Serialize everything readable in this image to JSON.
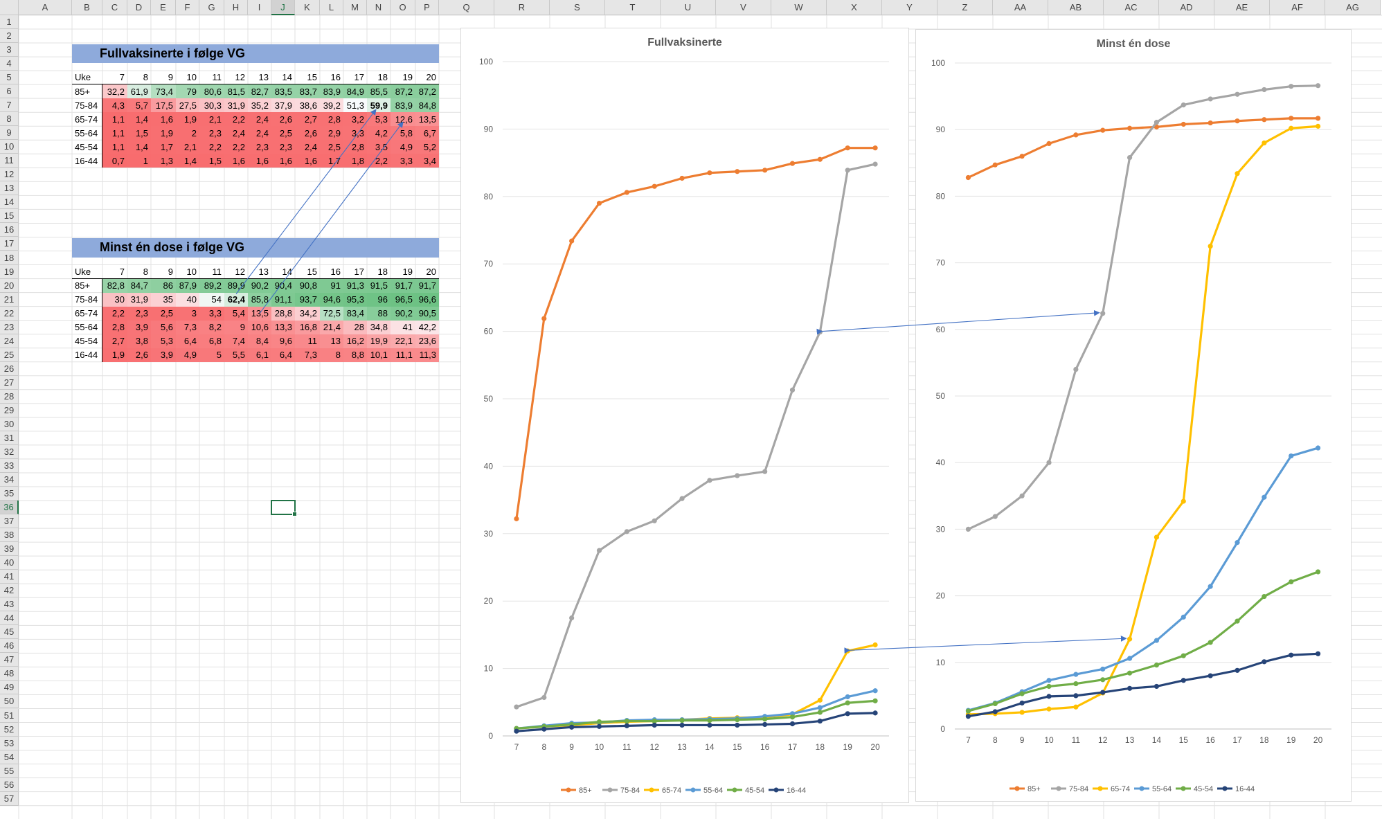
{
  "spreadsheet": {
    "columns": [
      "A",
      "B",
      "C",
      "D",
      "E",
      "F",
      "G",
      "H",
      "I",
      "J",
      "K",
      "L",
      "M",
      "N",
      "O",
      "P",
      "Q",
      "R",
      "S",
      "T",
      "U",
      "V",
      "W",
      "X",
      "Y",
      "Z",
      "AA",
      "AB",
      "AC",
      "AD",
      "AE",
      "AF",
      "AG"
    ],
    "rows": [
      "1",
      "2",
      "3",
      "4",
      "5",
      "6",
      "7",
      "8",
      "9",
      "10",
      "11",
      "12",
      "13",
      "14",
      "15",
      "16",
      "17",
      "18",
      "19",
      "20",
      "21",
      "22",
      "23",
      "24",
      "25",
      "26",
      "27",
      "28",
      "29",
      "30",
      "31",
      "32",
      "33",
      "34",
      "35",
      "36",
      "37",
      "38",
      "39",
      "40",
      "41",
      "42",
      "43",
      "44",
      "45",
      "46",
      "47",
      "48",
      "49",
      "50",
      "51",
      "52",
      "53",
      "54",
      "55",
      "56",
      "57"
    ],
    "selected_column": "J",
    "selected_row": "36"
  },
  "tables": [
    {
      "title": "Fullvaksinerte i følge VG",
      "header_label": "Uke",
      "weeks": [
        "7",
        "8",
        "9",
        "10",
        "11",
        "12",
        "13",
        "14",
        "15",
        "16",
        "17",
        "18",
        "19",
        "20"
      ],
      "rows": [
        {
          "label": "85+",
          "values": [
            "32,2",
            "61,9",
            "73,4",
            "79",
            "80,6",
            "81,5",
            "82,7",
            "83,5",
            "83,7",
            "83,9",
            "84,9",
            "85,5",
            "87,2",
            "87,2"
          ]
        },
        {
          "label": "75-84",
          "values": [
            "4,3",
            "5,7",
            "17,5",
            "27,5",
            "30,3",
            "31,9",
            "35,2",
            "37,9",
            "38,6",
            "39,2",
            "51,3",
            "59,9",
            "83,9",
            "84,8"
          ]
        },
        {
          "label": "65-74",
          "values": [
            "1,1",
            "1,4",
            "1,6",
            "1,9",
            "2,1",
            "2,2",
            "2,4",
            "2,6",
            "2,7",
            "2,8",
            "3,2",
            "5,3",
            "12,6",
            "13,5"
          ]
        },
        {
          "label": "55-64",
          "values": [
            "1,1",
            "1,5",
            "1,9",
            "2",
            "2,3",
            "2,4",
            "2,4",
            "2,5",
            "2,6",
            "2,9",
            "3,3",
            "4,2",
            "5,8",
            "6,7"
          ]
        },
        {
          "label": "45-54",
          "values": [
            "1,1",
            "1,4",
            "1,7",
            "2,1",
            "2,2",
            "2,2",
            "2,3",
            "2,3",
            "2,4",
            "2,5",
            "2,8",
            "3,5",
            "4,9",
            "5,2"
          ]
        },
        {
          "label": "16-44",
          "values": [
            "0,7",
            "1",
            "1,3",
            "1,4",
            "1,5",
            "1,6",
            "1,6",
            "1,6",
            "1,6",
            "1,7",
            "1,8",
            "2,2",
            "3,3",
            "3,4"
          ]
        }
      ]
    },
    {
      "title": "Minst én dose i følge VG",
      "header_label": "Uke",
      "weeks": [
        "7",
        "8",
        "9",
        "10",
        "11",
        "12",
        "13",
        "14",
        "15",
        "16",
        "17",
        "18",
        "19",
        "20"
      ],
      "rows": [
        {
          "label": "85+",
          "values": [
            "82,8",
            "84,7",
            "86",
            "87,9",
            "89,2",
            "89,9",
            "90,2",
            "90,4",
            "90,8",
            "91",
            "91,3",
            "91,5",
            "91,7",
            "91,7"
          ]
        },
        {
          "label": "75-84",
          "values": [
            "30",
            "31,9",
            "35",
            "40",
            "54",
            "62,4",
            "85,8",
            "91,1",
            "93,7",
            "94,6",
            "95,3",
            "96",
            "96,5",
            "96,6"
          ]
        },
        {
          "label": "65-74",
          "values": [
            "2,2",
            "2,3",
            "2,5",
            "3",
            "3,3",
            "5,4",
            "13,5",
            "28,8",
            "34,2",
            "72,5",
            "83,4",
            "88",
            "90,2",
            "90,5"
          ]
        },
        {
          "label": "55-64",
          "values": [
            "2,8",
            "3,9",
            "5,6",
            "7,3",
            "8,2",
            "9",
            "10,6",
            "13,3",
            "16,8",
            "21,4",
            "28",
            "34,8",
            "41",
            "42,2"
          ]
        },
        {
          "label": "45-54",
          "values": [
            "2,7",
            "3,8",
            "5,3",
            "6,4",
            "6,8",
            "7,4",
            "8,4",
            "9,6",
            "11",
            "13",
            "16,2",
            "19,9",
            "22,1",
            "23,6"
          ]
        },
        {
          "label": "16-44",
          "values": [
            "1,9",
            "2,6",
            "3,9",
            "4,9",
            "5",
            "5,5",
            "6,1",
            "6,4",
            "7,3",
            "8",
            "8,8",
            "10,1",
            "11,1",
            "11,3"
          ]
        }
      ]
    }
  ],
  "colors": {
    "series": [
      "#ED7D31",
      "#A5A5A5",
      "#FFC000",
      "#5B9BD5",
      "#70AD47",
      "#264478"
    ],
    "arrow": "#4472C4",
    "title_fill": "#8EAADB",
    "cell_green": "#63BE7B",
    "cell_red": "#F8696B"
  },
  "chart_data": [
    {
      "type": "line",
      "title": "Fullvaksinerte",
      "x": [
        "7",
        "8",
        "9",
        "10",
        "11",
        "12",
        "13",
        "14",
        "15",
        "16",
        "17",
        "18",
        "19",
        "20"
      ],
      "ylim": [
        0,
        100
      ],
      "yticks": [
        "0",
        "10",
        "20",
        "30",
        "40",
        "50",
        "60",
        "70",
        "80",
        "90",
        "100"
      ],
      "grid": true,
      "legend": "bottom",
      "series": [
        {
          "name": "85+",
          "values": [
            32.2,
            61.9,
            73.4,
            79,
            80.6,
            81.5,
            82.7,
            83.5,
            83.7,
            83.9,
            84.9,
            85.5,
            87.2,
            87.2
          ]
        },
        {
          "name": "75-84",
          "values": [
            4.3,
            5.7,
            17.5,
            27.5,
            30.3,
            31.9,
            35.2,
            37.9,
            38.6,
            39.2,
            51.3,
            59.9,
            83.9,
            84.8
          ]
        },
        {
          "name": "65-74",
          "values": [
            1.1,
            1.4,
            1.6,
            1.9,
            2.1,
            2.2,
            2.4,
            2.6,
            2.7,
            2.8,
            3.2,
            5.3,
            12.6,
            13.5
          ]
        },
        {
          "name": "55-64",
          "values": [
            1.1,
            1.5,
            1.9,
            2,
            2.3,
            2.4,
            2.4,
            2.5,
            2.6,
            2.9,
            3.3,
            4.2,
            5.8,
            6.7
          ]
        },
        {
          "name": "45-54",
          "values": [
            1.1,
            1.4,
            1.7,
            2.1,
            2.2,
            2.2,
            2.3,
            2.3,
            2.4,
            2.5,
            2.8,
            3.5,
            4.9,
            5.2
          ]
        },
        {
          "name": "16-44",
          "values": [
            0.7,
            1,
            1.3,
            1.4,
            1.5,
            1.6,
            1.6,
            1.6,
            1.6,
            1.7,
            1.8,
            2.2,
            3.3,
            3.4
          ]
        }
      ]
    },
    {
      "type": "line",
      "title": "Minst én dose",
      "x": [
        "7",
        "8",
        "9",
        "10",
        "11",
        "12",
        "13",
        "14",
        "15",
        "16",
        "17",
        "18",
        "19",
        "20"
      ],
      "ylim": [
        0,
        100
      ],
      "yticks": [
        "0",
        "10",
        "20",
        "30",
        "40",
        "50",
        "60",
        "70",
        "80",
        "90",
        "100"
      ],
      "grid": true,
      "legend": "bottom",
      "series": [
        {
          "name": "85+",
          "values": [
            82.8,
            84.7,
            86,
            87.9,
            89.2,
            89.9,
            90.2,
            90.4,
            90.8,
            91,
            91.3,
            91.5,
            91.7,
            91.7
          ]
        },
        {
          "name": "75-84",
          "values": [
            30,
            31.9,
            35,
            40,
            54,
            62.4,
            85.8,
            91.1,
            93.7,
            94.6,
            95.3,
            96,
            96.5,
            96.6
          ]
        },
        {
          "name": "65-74",
          "values": [
            2.2,
            2.3,
            2.5,
            3,
            3.3,
            5.4,
            13.5,
            28.8,
            34.2,
            72.5,
            83.4,
            88,
            90.2,
            90.5
          ]
        },
        {
          "name": "55-64",
          "values": [
            2.8,
            3.9,
            5.6,
            7.3,
            8.2,
            9,
            10.6,
            13.3,
            16.8,
            21.4,
            28,
            34.8,
            41,
            42.2
          ]
        },
        {
          "name": "45-54",
          "values": [
            2.7,
            3.8,
            5.3,
            6.4,
            6.8,
            7.4,
            8.4,
            9.6,
            11,
            13,
            16.2,
            19.9,
            22.1,
            23.6
          ]
        },
        {
          "name": "16-44",
          "values": [
            1.9,
            2.6,
            3.9,
            4.9,
            5,
            5.5,
            6.1,
            6.4,
            7.3,
            8,
            8.8,
            10.1,
            11.1,
            11.3
          ]
        }
      ]
    }
  ]
}
